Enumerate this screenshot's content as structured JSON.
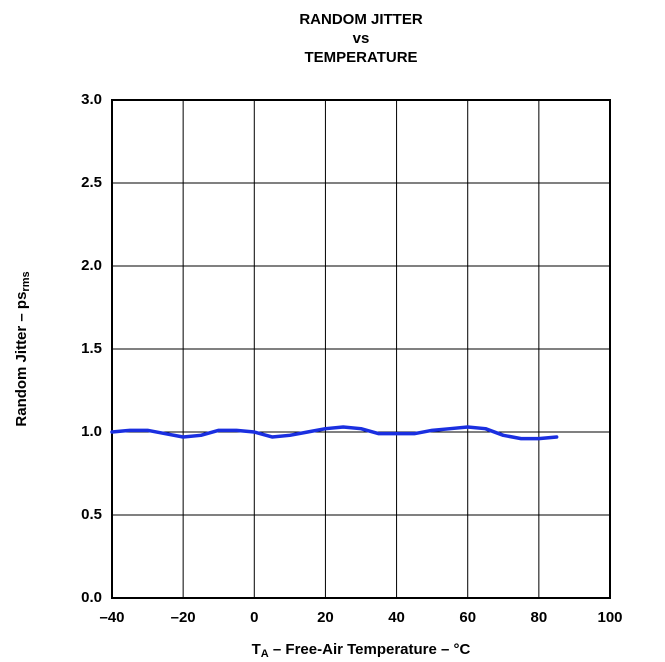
{
  "chart_data": {
    "type": "line",
    "title": [
      "RANDOM JITTER",
      "vs",
      "TEMPERATURE"
    ],
    "xlabel": [
      "T",
      "A",
      " – Free-Air Temperature – °C"
    ],
    "ylabel": [
      "Random Jitter – ps",
      "rms"
    ],
    "x": [
      -40,
      -35,
      -30,
      -25,
      -20,
      -15,
      -10,
      -5,
      0,
      5,
      10,
      15,
      20,
      25,
      30,
      35,
      40,
      45,
      50,
      55,
      60,
      65,
      70,
      75,
      80,
      85
    ],
    "series": [
      {
        "name": "Random Jitter",
        "color": "#1a2fe0",
        "values": [
          1.0,
          1.01,
          1.01,
          0.99,
          0.97,
          0.98,
          1.01,
          1.01,
          1.0,
          0.97,
          0.98,
          1.0,
          1.02,
          1.03,
          1.02,
          0.99,
          0.99,
          0.99,
          1.01,
          1.02,
          1.03,
          1.02,
          0.98,
          0.96,
          0.96,
          0.97
        ]
      }
    ],
    "xlim": [
      -40,
      100
    ],
    "xticks": [
      {
        "value": -40,
        "label": "–40"
      },
      {
        "value": -20,
        "label": "–20"
      },
      0,
      20,
      40,
      60,
      80,
      100
    ],
    "ylim": [
      0,
      3
    ],
    "yticks": [
      {
        "value": 0,
        "label": "0.0"
      },
      0.5,
      {
        "value": 1,
        "label": "1.0"
      },
      1.5,
      {
        "value": 2,
        "label": "2.0"
      },
      2.5,
      {
        "value": 3,
        "label": "3.0"
      }
    ],
    "grid": true
  }
}
